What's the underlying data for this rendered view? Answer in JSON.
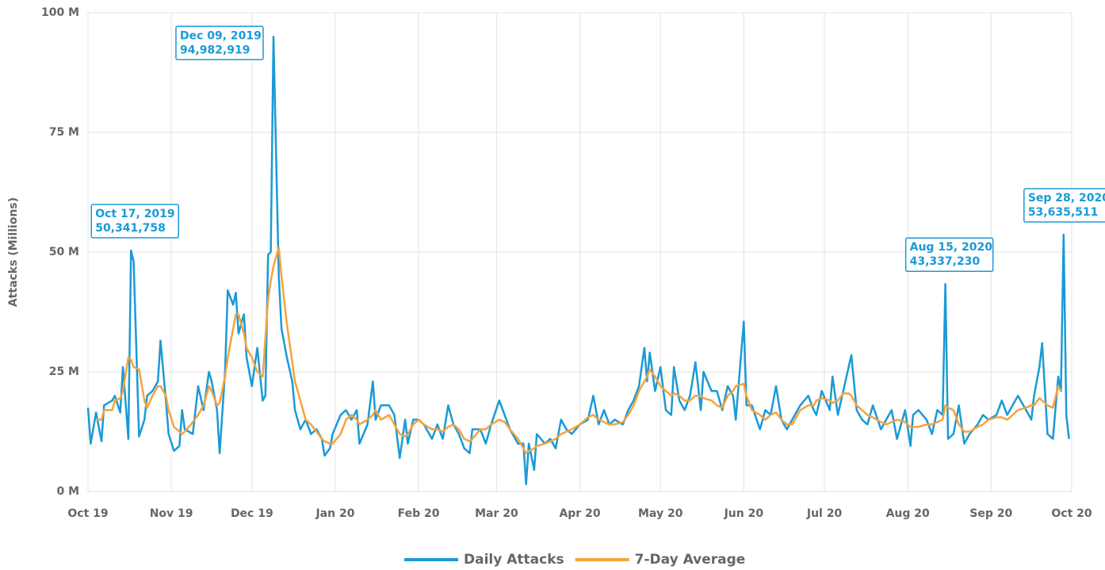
{
  "chart_data": {
    "type": "line",
    "y_label": "Attacks (Millions)",
    "x": [
      "2019-10-01",
      "2019-10-02",
      "2019-10-04",
      "2019-10-06",
      "2019-10-07",
      "2019-10-10",
      "2019-10-11",
      "2019-10-13",
      "2019-10-14",
      "2019-10-16",
      "2019-10-17",
      "2019-10-18",
      "2019-10-20",
      "2019-10-22",
      "2019-10-23",
      "2019-10-25",
      "2019-10-27",
      "2019-10-28",
      "2019-10-30",
      "2019-10-31",
      "2019-11-02",
      "2019-11-04",
      "2019-11-05",
      "2019-11-06",
      "2019-11-09",
      "2019-11-11",
      "2019-11-13",
      "2019-11-15",
      "2019-11-16",
      "2019-11-18",
      "2019-11-19",
      "2019-11-21",
      "2019-11-22",
      "2019-11-24",
      "2019-11-25",
      "2019-11-26",
      "2019-11-28",
      "2019-11-29",
      "2019-12-01",
      "2019-12-03",
      "2019-12-05",
      "2019-12-06",
      "2019-12-07",
      "2019-12-08",
      "2019-12-09",
      "2019-12-11",
      "2019-12-12",
      "2019-12-14",
      "2019-12-16",
      "2019-12-17",
      "2019-12-19",
      "2019-12-21",
      "2019-12-23",
      "2019-12-25",
      "2019-12-27",
      "2019-12-28",
      "2019-12-30",
      "2019-12-31",
      "2020-01-03",
      "2020-01-05",
      "2020-01-07",
      "2020-01-09",
      "2020-01-10",
      "2020-01-13",
      "2020-01-15",
      "2020-01-16",
      "2020-01-18",
      "2020-01-21",
      "2020-01-23",
      "2020-01-25",
      "2020-01-27",
      "2020-01-28",
      "2020-01-30",
      "2020-02-01",
      "2020-02-03",
      "2020-02-06",
      "2020-02-08",
      "2020-02-10",
      "2020-02-12",
      "2020-02-14",
      "2020-02-16",
      "2020-02-18",
      "2020-02-20",
      "2020-02-21",
      "2020-02-24",
      "2020-02-26",
      "2020-02-28",
      "2020-03-02",
      "2020-03-04",
      "2020-03-06",
      "2020-03-09",
      "2020-03-11",
      "2020-03-12",
      "2020-03-13",
      "2020-03-15",
      "2020-03-16",
      "2020-03-19",
      "2020-03-21",
      "2020-03-23",
      "2020-03-25",
      "2020-03-27",
      "2020-03-29",
      "2020-04-01",
      "2020-04-04",
      "2020-04-06",
      "2020-04-08",
      "2020-04-10",
      "2020-04-12",
      "2020-04-14",
      "2020-04-17",
      "2020-04-19",
      "2020-04-21",
      "2020-04-23",
      "2020-04-25",
      "2020-04-26",
      "2020-04-27",
      "2020-04-29",
      "2020-05-01",
      "2020-05-03",
      "2020-05-05",
      "2020-05-06",
      "2020-05-08",
      "2020-05-10",
      "2020-05-12",
      "2020-05-14",
      "2020-05-16",
      "2020-05-17",
      "2020-05-20",
      "2020-05-22",
      "2020-05-24",
      "2020-05-26",
      "2020-05-28",
      "2020-05-29",
      "2020-06-01",
      "2020-06-02",
      "2020-06-04",
      "2020-06-07",
      "2020-06-09",
      "2020-06-11",
      "2020-06-13",
      "2020-06-15",
      "2020-06-17",
      "2020-06-19",
      "2020-06-22",
      "2020-06-25",
      "2020-06-27",
      "2020-06-28",
      "2020-06-30",
      "2020-07-03",
      "2020-07-04",
      "2020-07-06",
      "2020-07-08",
      "2020-07-10",
      "2020-07-11",
      "2020-07-13",
      "2020-07-15",
      "2020-07-17",
      "2020-07-19",
      "2020-07-22",
      "2020-07-24",
      "2020-07-26",
      "2020-07-28",
      "2020-07-31",
      "2020-08-02",
      "2020-08-03",
      "2020-08-05",
      "2020-08-08",
      "2020-08-10",
      "2020-08-12",
      "2020-08-14",
      "2020-08-15",
      "2020-08-16",
      "2020-08-18",
      "2020-08-20",
      "2020-08-22",
      "2020-08-24",
      "2020-08-27",
      "2020-08-29",
      "2020-08-31",
      "2020-09-03",
      "2020-09-05",
      "2020-09-07",
      "2020-09-09",
      "2020-09-11",
      "2020-09-14",
      "2020-09-16",
      "2020-09-17",
      "2020-09-19",
      "2020-09-20",
      "2020-09-22",
      "2020-09-24",
      "2020-09-26",
      "2020-09-27",
      "2020-09-28",
      "2020-09-29",
      "2020-09-30"
    ],
    "series": [
      {
        "name": "Daily Attacks",
        "color": "#1a9ad6",
        "values": [
          17.5,
          10,
          16.5,
          10.5,
          18,
          19,
          20,
          16.5,
          26,
          11,
          50.341758,
          48,
          11.5,
          15,
          20,
          21,
          23,
          31.5,
          19,
          12,
          8.5,
          9.5,
          17,
          13,
          12,
          22,
          17,
          25,
          23,
          17,
          8,
          25,
          42,
          39,
          41.5,
          33,
          37,
          28,
          22,
          30,
          19,
          20,
          49.5,
          50,
          94.982919,
          45,
          34,
          28,
          23,
          17,
          13,
          15,
          12,
          13,
          11,
          7.5,
          9,
          12,
          16,
          17,
          15,
          17,
          10,
          14,
          23,
          15,
          18,
          18,
          16,
          7,
          15,
          10,
          15,
          15,
          14,
          11,
          14,
          11,
          18,
          14,
          12,
          9,
          8,
          13,
          13,
          10,
          14,
          19,
          16,
          13,
          10,
          10,
          1.5,
          10,
          4.5,
          12,
          10,
          11,
          9,
          15,
          13,
          12,
          14,
          15,
          20,
          14,
          17,
          14,
          15,
          14,
          17,
          19,
          22,
          30,
          23,
          29,
          21,
          26,
          17,
          16,
          26,
          19,
          17,
          20,
          27,
          17,
          25,
          21,
          21,
          17,
          22,
          20,
          15,
          35.5,
          18,
          18,
          13,
          17,
          16,
          22,
          15,
          13,
          15,
          18,
          20,
          17,
          16,
          21,
          17,
          24,
          16,
          21,
          26,
          28.5,
          17,
          15,
          14,
          18,
          13,
          15,
          17,
          11,
          17,
          9.5,
          16,
          17,
          15,
          12,
          17,
          16,
          43.33723,
          11,
          12,
          18,
          10,
          12,
          14,
          16,
          15,
          16,
          19,
          16,
          18,
          20,
          17,
          15,
          20,
          26,
          31,
          12,
          11,
          24,
          21,
          53.635511,
          16,
          11
        ]
      },
      {
        "name": "7-Day Average",
        "color": "#f7a23b",
        "values": [
          null,
          null,
          15,
          15,
          17,
          17,
          19,
          19.5,
          21,
          28,
          27.5,
          26,
          25.5,
          19,
          17.5,
          20,
          22,
          22,
          20,
          17,
          13.5,
          12.5,
          12,
          12.5,
          14.5,
          16,
          18,
          22,
          21,
          18,
          18.5,
          24,
          28,
          34,
          37,
          37,
          33,
          30,
          28,
          25,
          24,
          32,
          40,
          44,
          47,
          51,
          45,
          35,
          27,
          23,
          19,
          15,
          14,
          12.5,
          11,
          10.5,
          10,
          10,
          12,
          15,
          16,
          15,
          14,
          15,
          16,
          17,
          15,
          16,
          14,
          12,
          11.5,
          12,
          14,
          15,
          14,
          13,
          13,
          12.5,
          13.5,
          14,
          13,
          11,
          10.5,
          11,
          13,
          13,
          14,
          15,
          14.5,
          13,
          11,
          9,
          8,
          8.5,
          9,
          9.5,
          10,
          10.5,
          11,
          12,
          12.5,
          13,
          14,
          15.5,
          16,
          15,
          14.5,
          14,
          14,
          14.5,
          16,
          18,
          21,
          23,
          24,
          25.5,
          24,
          22,
          21,
          20,
          20.5,
          20,
          19,
          19,
          20,
          20,
          19.5,
          19,
          18,
          17.5,
          20,
          21,
          22,
          22.5,
          20,
          17,
          16,
          15,
          16,
          16.5,
          15,
          14,
          14,
          17,
          18,
          18,
          19,
          19.5,
          19,
          18.5,
          19,
          20.5,
          20.5,
          20,
          18,
          17,
          16,
          15.5,
          14.5,
          14,
          14.5,
          15,
          14.5,
          13.5,
          13.5,
          13.5,
          14,
          14,
          14.5,
          15,
          18,
          17.5,
          17,
          14,
          12.5,
          12.5,
          13.5,
          14,
          15,
          15.5,
          15.5,
          15,
          16,
          17,
          17.5,
          18,
          18,
          19.5,
          19,
          18,
          17.5,
          22,
          21,
          null,
          null,
          null
        ]
      }
    ],
    "xlim": [
      "2019-10-01",
      "2020-10-01"
    ],
    "xticks": [
      {
        "value": "2019-10-01",
        "label": "Oct 19"
      },
      {
        "value": "2019-11-01",
        "label": "Nov 19"
      },
      {
        "value": "2019-12-01",
        "label": "Dec 19"
      },
      {
        "value": "2020-01-01",
        "label": "Jan 20"
      },
      {
        "value": "2020-02-01",
        "label": "Feb 20"
      },
      {
        "value": "2020-03-01",
        "label": "Mar 20"
      },
      {
        "value": "2020-04-01",
        "label": "Apr 20"
      },
      {
        "value": "2020-05-01",
        "label": "May 20"
      },
      {
        "value": "2020-06-01",
        "label": "Jun 20"
      },
      {
        "value": "2020-07-01",
        "label": "Jul 20"
      },
      {
        "value": "2020-08-01",
        "label": "Aug 20"
      },
      {
        "value": "2020-09-01",
        "label": "Sep 20"
      },
      {
        "value": "2020-10-01",
        "label": "Oct 20"
      }
    ],
    "ylim": [
      0,
      100
    ],
    "yticks": [
      {
        "value": 0,
        "label": "0 M"
      },
      {
        "value": 25,
        "label": "25 M"
      },
      {
        "value": 50,
        "label": "50 M"
      },
      {
        "value": 75,
        "label": "75 M"
      },
      {
        "value": 100,
        "label": "100 M"
      }
    ],
    "grid": true,
    "legend": "bottom",
    "annotations": [
      {
        "x": "2019-10-17",
        "date": "Oct 17, 2019",
        "value": 50.341758,
        "label": "50,341,758"
      },
      {
        "x": "2019-12-09",
        "date": "Dec 09, 2019",
        "value": 94.982919,
        "label": "94,982,919"
      },
      {
        "x": "2020-08-15",
        "date": "Aug 15, 2020",
        "value": 43.33723,
        "label": "43,337,230"
      },
      {
        "x": "2020-09-28",
        "date": "Sep 28, 2020",
        "value": 53.635511,
        "label": "53,635,511"
      }
    ]
  }
}
